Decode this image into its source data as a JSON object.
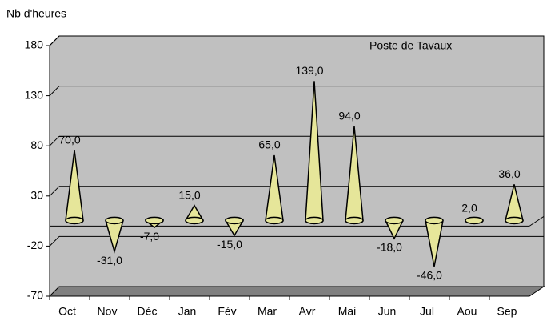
{
  "chart_data": {
    "type": "cone",
    "y_axis_label": "Nb d'heures",
    "annotation": "Poste de Tavaux",
    "categories": [
      "Oct",
      "Nov",
      "Déc",
      "Jan",
      "Fév",
      "Mar",
      "Avr",
      "Mai",
      "Jun",
      "Jul",
      "Aou",
      "Sep"
    ],
    "values": [
      70,
      -31,
      -7,
      15,
      -15,
      65,
      139,
      94,
      -18,
      -46,
      2,
      36
    ],
    "value_labels": [
      "70,0",
      "-31,0",
      "-7,0",
      "15,0",
      "-15,0",
      "65,0",
      "139,0",
      "94,0",
      "-18,0",
      "-46,0",
      "2,0",
      "36,0"
    ],
    "color": "#e6e69a",
    "ylim": [
      -70,
      180
    ],
    "yticks": [
      -70,
      -20,
      30,
      80,
      130,
      180
    ],
    "grid": true
  }
}
